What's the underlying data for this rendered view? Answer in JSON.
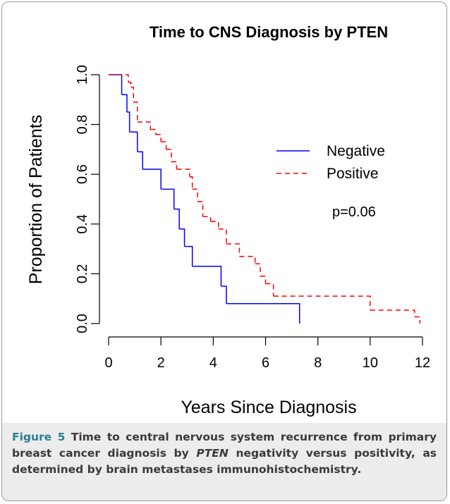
{
  "chart_data": {
    "type": "step",
    "title": "Time to CNS Diagnosis by PTEN",
    "x_label": "Years Since Diagnosis",
    "y_label": "Proportion of Patients",
    "annotation": "p=0.06",
    "legend_position": "right",
    "xlim": [
      0,
      12
    ],
    "xticks": [
      0,
      2,
      4,
      6,
      8,
      10,
      12
    ],
    "ylim": [
      0,
      1
    ],
    "yticks": [
      {
        "value": 0,
        "label": "0.0"
      },
      0.2,
      0.4,
      0.6,
      0.8,
      {
        "value": 1,
        "label": "1.0"
      }
    ],
    "series": [
      {
        "name": "Negative",
        "color": "#0000ff",
        "dash": "solid",
        "x": [
          0,
          0.5,
          0.7,
          0.8,
          1.1,
          1.3,
          2.0,
          2.5,
          2.7,
          2.9,
          3.2,
          4.3,
          4.5,
          7.3
        ],
        "values": [
          1,
          0.92,
          0.85,
          0.77,
          0.69,
          0.62,
          0.54,
          0.46,
          0.38,
          0.31,
          0.23,
          0.15,
          0.08,
          0
        ]
      },
      {
        "name": "Positive",
        "color": "#ff0000",
        "dash": "dashed",
        "x": [
          0,
          0.75,
          0.85,
          0.95,
          1.1,
          1.6,
          1.8,
          2.0,
          2.2,
          2.4,
          2.6,
          3.1,
          3.2,
          3.4,
          3.6,
          3.9,
          4.2,
          4.5,
          5.0,
          5.6,
          5.8,
          6.0,
          6.3,
          10.0,
          11.7,
          11.9
        ],
        "values": [
          1,
          0.97,
          0.95,
          0.89,
          0.81,
          0.78,
          0.76,
          0.73,
          0.7,
          0.65,
          0.62,
          0.59,
          0.54,
          0.49,
          0.43,
          0.41,
          0.38,
          0.32,
          0.27,
          0.24,
          0.19,
          0.16,
          0.11,
          0.054,
          0.027,
          0
        ]
      }
    ]
  },
  "caption": {
    "label": "Figure 5",
    "text_1": "Time to central nervous system recurrence from primary breast cancer diagnosis by",
    "italic": "PTEN",
    "text_2": "negativity versus positivity, as determined by brain metastases immunohistochemistry."
  }
}
